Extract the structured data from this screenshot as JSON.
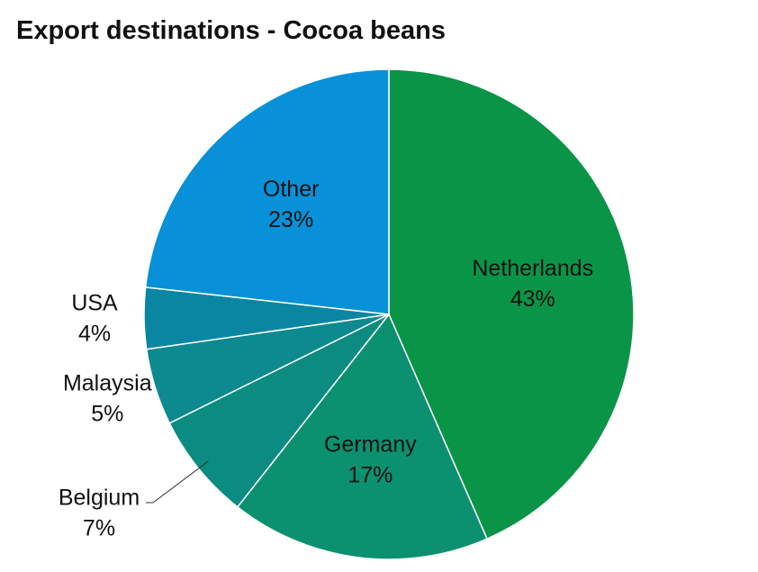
{
  "chart_data": {
    "type": "pie",
    "title": "Export destinations - Cocoa beans",
    "categories": [
      "Netherlands",
      "Germany",
      "Belgium",
      "Malaysia",
      "USA",
      "Other"
    ],
    "values": [
      43,
      17,
      7,
      5,
      4,
      23
    ],
    "value_labels": [
      "43%",
      "17%",
      "7%",
      "5%",
      "4%",
      "23%"
    ],
    "colors": [
      "#0a9447",
      "#0b9170",
      "#0c8b80",
      "#0c8a90",
      "#0a86a2",
      "#0891d8"
    ]
  }
}
